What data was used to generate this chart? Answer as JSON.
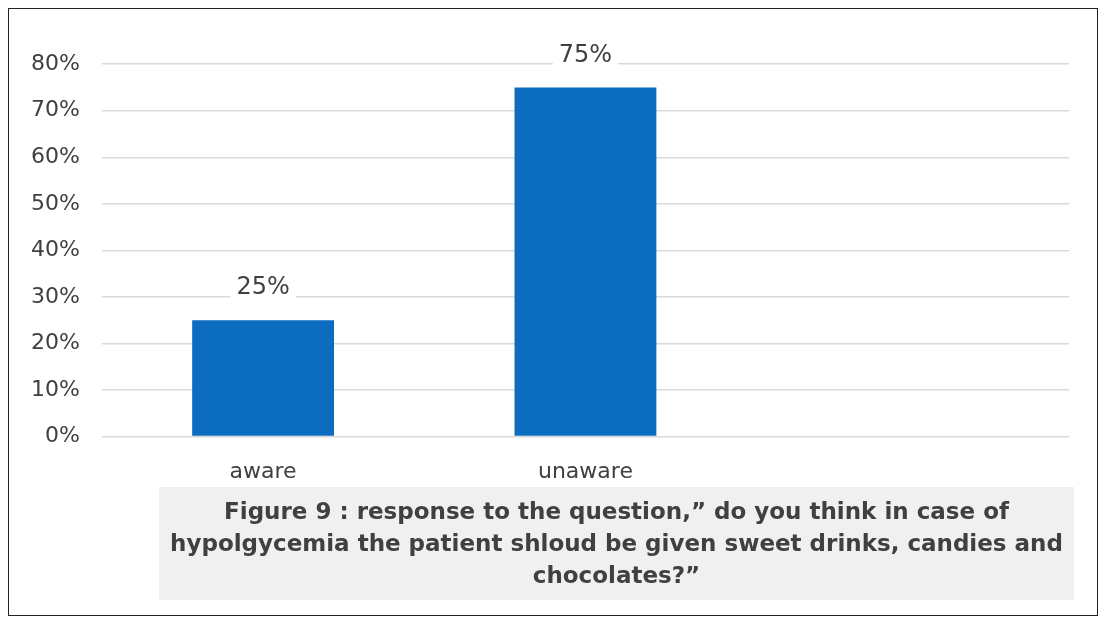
{
  "chart_data": {
    "type": "bar",
    "categories": [
      "aware",
      "unaware",
      null
    ],
    "values": [
      25,
      75,
      null
    ],
    "value_labels": [
      "25%",
      "75%",
      null
    ],
    "color": "#0b6cc0",
    "ylim": [
      0,
      80
    ],
    "yticks": [
      {
        "value": 0,
        "label": "0%"
      },
      {
        "value": 10,
        "label": "10%"
      },
      {
        "value": 20,
        "label": "20%"
      },
      {
        "value": 30,
        "label": "30%"
      },
      {
        "value": 40,
        "label": "40%"
      },
      {
        "value": 50,
        "label": "50%"
      },
      {
        "value": 60,
        "label": "60%"
      },
      {
        "value": 70,
        "label": "70%"
      },
      {
        "value": 80,
        "label": "80%"
      }
    ],
    "grid": "y",
    "legend": false,
    "annotations": [
      "Figure  9 : response to the question,” do you think in case of hypolgycemia the patient shloud be given sweet drinks, candies and chocolates?”"
    ]
  }
}
